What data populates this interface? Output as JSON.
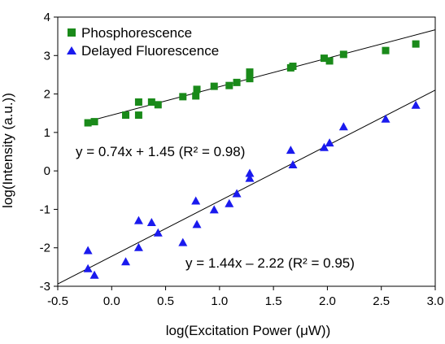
{
  "chart_data": {
    "type": "scatter",
    "title": "",
    "xlabel": "log(Excitation Power (μW))",
    "ylabel": "log(Intensity (a.u.))",
    "xlim": [
      -0.5,
      3.0
    ],
    "ylim": [
      -3,
      4
    ],
    "xticks": [
      -0.5,
      0.0,
      0.5,
      1.0,
      1.5,
      2.0,
      2.5,
      3.0
    ],
    "xtick_labels": [
      "-0.5",
      "0.0",
      "0.5",
      "1.0",
      "1.5",
      "2.0",
      "2.5",
      "3.0"
    ],
    "yticks": [
      -3,
      -2,
      -1,
      0,
      1,
      2,
      3,
      4
    ],
    "ytick_labels": [
      "-3",
      "-2",
      "-1",
      "0",
      "1",
      "2",
      "3",
      "4"
    ],
    "grid": false,
    "legend_position": "top-left",
    "series": [
      {
        "name": "Phosphorescence",
        "marker": "square",
        "color": "#1a8a1a",
        "points": [
          [
            -0.22,
            1.25
          ],
          [
            -0.16,
            1.28
          ],
          [
            0.13,
            1.45
          ],
          [
            0.25,
            1.79
          ],
          [
            0.25,
            1.45
          ],
          [
            0.37,
            1.79
          ],
          [
            0.43,
            1.72
          ],
          [
            0.66,
            1.93
          ],
          [
            0.78,
            1.95
          ],
          [
            0.79,
            2.12
          ],
          [
            0.95,
            2.2
          ],
          [
            1.09,
            2.22
          ],
          [
            1.16,
            2.3
          ],
          [
            1.28,
            2.57
          ],
          [
            1.28,
            2.4
          ],
          [
            1.66,
            2.68
          ],
          [
            1.68,
            2.72
          ],
          [
            1.97,
            2.93
          ],
          [
            2.02,
            2.86
          ],
          [
            2.15,
            3.03
          ],
          [
            2.54,
            3.13
          ],
          [
            2.82,
            3.3
          ]
        ],
        "fit": {
          "slope": 0.74,
          "intercept": 1.45,
          "x_range": [
            -0.22,
            3.0
          ]
        },
        "fit_label": "y = 0.74x + 1.45 (R² = 0.98)"
      },
      {
        "name": "Delayed Fluorescence",
        "marker": "triangle",
        "color": "#1a1aee",
        "points": [
          [
            -0.22,
            -2.08
          ],
          [
            -0.22,
            -2.55
          ],
          [
            -0.16,
            -2.72
          ],
          [
            0.13,
            -2.37
          ],
          [
            0.25,
            -1.3
          ],
          [
            0.25,
            -2.0
          ],
          [
            0.37,
            -1.35
          ],
          [
            0.43,
            -1.62
          ],
          [
            0.66,
            -1.87
          ],
          [
            0.78,
            -0.79
          ],
          [
            0.79,
            -1.4
          ],
          [
            0.95,
            -1.02
          ],
          [
            1.09,
            -0.86
          ],
          [
            1.16,
            -0.6
          ],
          [
            1.28,
            -0.07
          ],
          [
            1.28,
            -0.2
          ],
          [
            1.66,
            0.53
          ],
          [
            1.68,
            0.15
          ],
          [
            1.97,
            0.6
          ],
          [
            2.02,
            0.72
          ],
          [
            2.15,
            1.14
          ],
          [
            2.54,
            1.34
          ],
          [
            2.82,
            1.7
          ]
        ],
        "fit": {
          "slope": 1.44,
          "intercept": -2.22,
          "x_range": [
            -0.5,
            3.0
          ]
        },
        "fit_label": "y = 1.44x – 2.22 (R² = 0.95)"
      }
    ]
  }
}
